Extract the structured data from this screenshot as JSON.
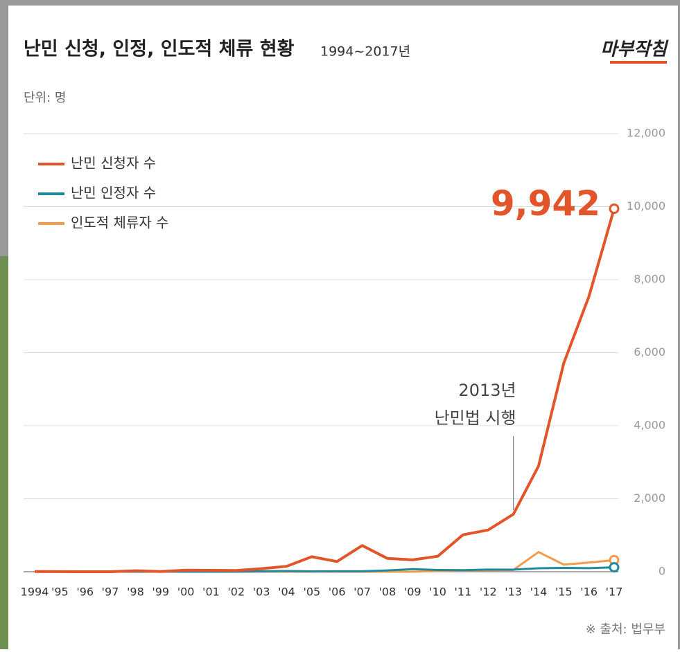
{
  "chart_data": {
    "type": "line",
    "title": "난민 신청, 인정, 인도적 체류 현황",
    "subtitle": "1994~2017년",
    "logo": "마부작침",
    "unit": "단위: 명",
    "source": "※ 출처: 법무부",
    "categories": [
      "1994",
      "'95",
      "'96",
      "'97",
      "'98",
      "'99",
      "'00",
      "'01",
      "'02",
      "'03",
      "'04",
      "'05",
      "'06",
      "'07",
      "'08",
      "'09",
      "'10",
      "'11",
      "'12",
      "'13",
      "'14",
      "'15",
      "'16",
      "'17"
    ],
    "series": [
      {
        "name": "난민 신청자 수",
        "color": "#e2552a",
        "values": [
          5,
          2,
          0,
          0,
          26,
          4,
          43,
          37,
          34,
          84,
          148,
          410,
          278,
          717,
          364,
          324,
          423,
          1011,
          1143,
          1574,
          2896,
          5711,
          7542,
          9942
        ],
        "value_labels": [
          null,
          null,
          null,
          null,
          null,
          null,
          null,
          null,
          null,
          null,
          null,
          null,
          null,
          null,
          null,
          null,
          null,
          null,
          null,
          null,
          null,
          null,
          null,
          "9,942"
        ]
      },
      {
        "name": "난민 인정자 수",
        "color": "#1f8a9e",
        "values": [
          0,
          0,
          0,
          0,
          0,
          0,
          0,
          1,
          1,
          12,
          18,
          9,
          11,
          13,
          36,
          70,
          47,
          42,
          60,
          57,
          94,
          105,
          98,
          121
        ]
      },
      {
        "name": "인도적 체류자 수",
        "color": "#f39a4c",
        "values": [
          0,
          0,
          0,
          0,
          0,
          0,
          0,
          0,
          0,
          0,
          0,
          0,
          0,
          0,
          0,
          0,
          20,
          30,
          40,
          50,
          539,
          194,
          252,
          318
        ]
      }
    ],
    "ylim": [
      0,
      12000
    ],
    "yticks": [
      0,
      {
        "value": 2000,
        "label": "2,000"
      },
      {
        "value": 4000,
        "label": "4,000"
      },
      {
        "value": 6000,
        "label": "6,000"
      },
      {
        "value": 8000,
        "label": "8,000"
      },
      {
        "value": 10000,
        "label": "10,000"
      },
      {
        "value": 12000,
        "label": "12,000"
      }
    ],
    "grid": true,
    "legend": "upper left",
    "annotations": [
      {
        "lines": [
          "2013년",
          "난민법 시행"
        ],
        "category": "'13"
      }
    ]
  }
}
